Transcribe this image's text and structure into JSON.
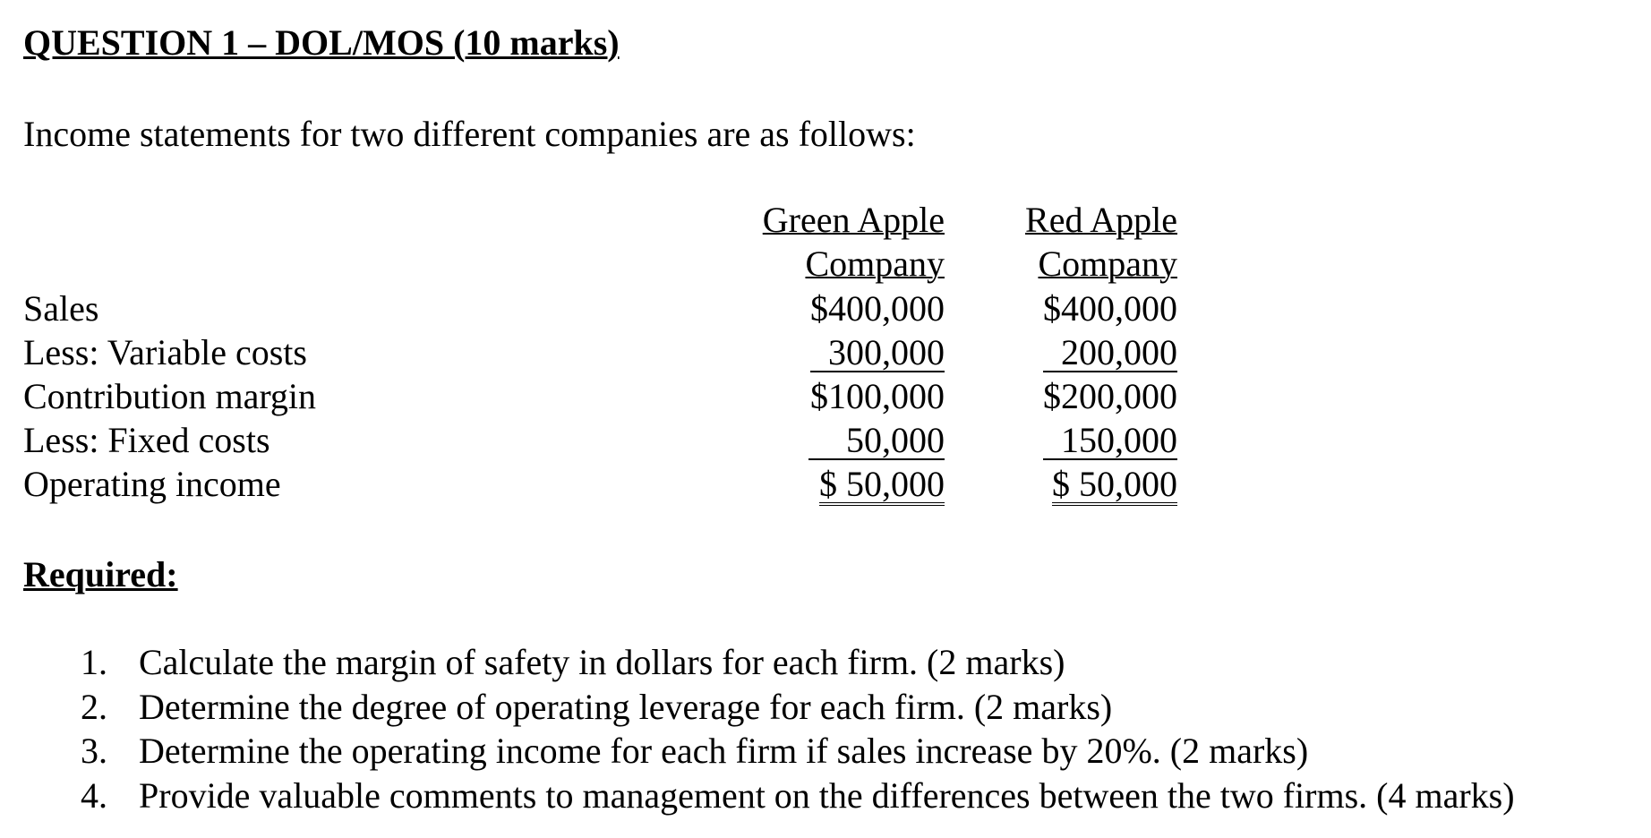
{
  "title": "QUESTION 1 – DOL/MOS (10 marks)",
  "intro": "Income statements for two different companies are as follows:",
  "table": {
    "columns": [
      {
        "line1": "Green Apple",
        "line2": "Company"
      },
      {
        "line1": "Red Apple",
        "line2": "Company"
      }
    ],
    "rows": [
      {
        "label": "Sales",
        "values": [
          "$400,000",
          "$400,000"
        ]
      },
      {
        "label": "Less: Variable costs",
        "values": [
          "300,000",
          "200,000"
        ]
      },
      {
        "label": "Contribution margin",
        "values": [
          "$100,000",
          "$200,000"
        ]
      },
      {
        "label": "Less: Fixed costs",
        "values": [
          "50,000",
          "150,000"
        ]
      },
      {
        "label": "Operating income",
        "values": [
          "$ 50,000",
          "$ 50,000"
        ]
      }
    ]
  },
  "required_heading": "Required:",
  "questions": [
    {
      "num": "1.",
      "text": "Calculate the margin of safety in dollars for each firm. (2 marks)"
    },
    {
      "num": "2.",
      "text": "Determine the degree of operating leverage for each firm. (2 marks)"
    },
    {
      "num": "3.",
      "text": "Determine the operating income for each firm if sales increase by 20%. (2 marks)"
    },
    {
      "num": "4.",
      "text": "Provide valuable comments to management on the differences between the two firms.  (4 marks)"
    }
  ]
}
